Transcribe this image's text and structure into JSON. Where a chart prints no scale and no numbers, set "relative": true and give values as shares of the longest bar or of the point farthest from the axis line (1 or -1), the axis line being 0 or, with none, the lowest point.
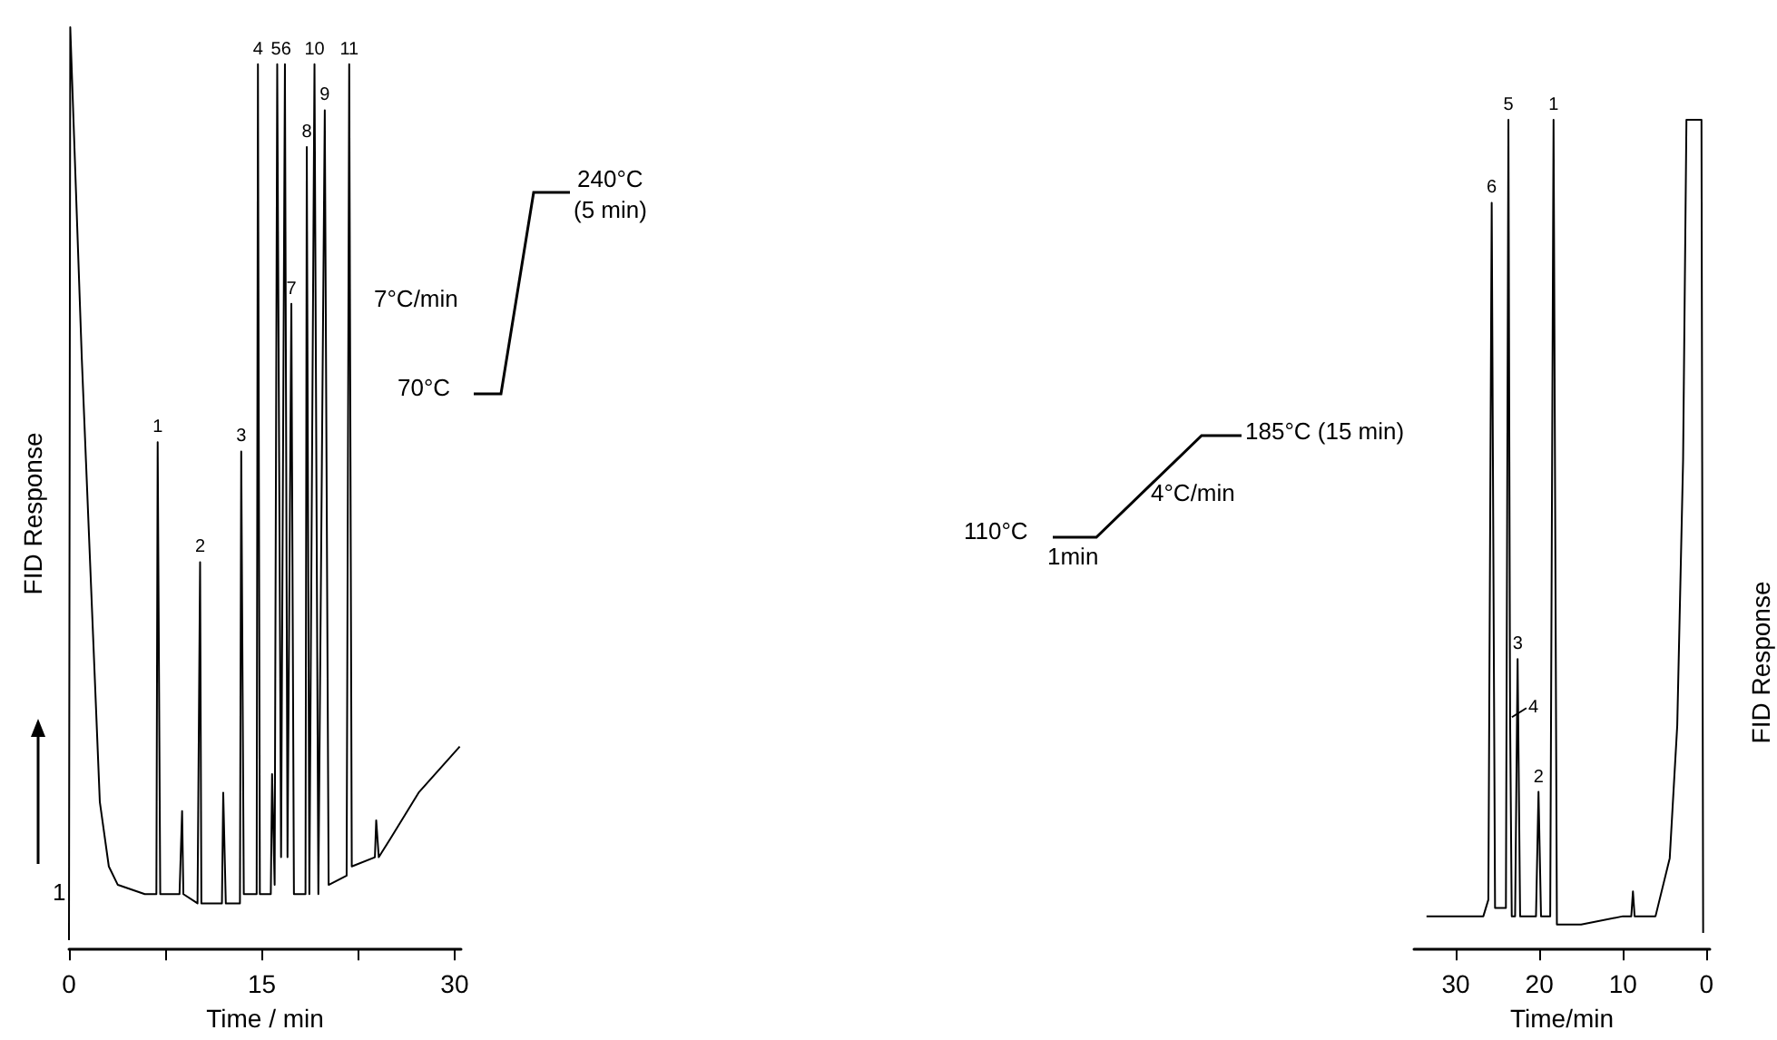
{
  "chart_data": [
    {
      "type": "line",
      "relative": true,
      "xlabel": "Time / min",
      "ylabel": "FID Response",
      "xlim": [
        0,
        30.5
      ],
      "xticks": [
        0,
        {
          "value": 7.5,
          "label": null
        },
        15,
        {
          "value": 22.5,
          "label": null
        },
        30
      ],
      "x": [
        0,
        0.1,
        1.0,
        2.4,
        3.1,
        3.8,
        5.9,
        6.8,
        6.9,
        7.1,
        8.6,
        8.8,
        8.9,
        10.0,
        10.2,
        10.3,
        11.9,
        12.0,
        12.2,
        13.3,
        13.4,
        13.6,
        14.6,
        14.7,
        14.85,
        15.7,
        15.8,
        16.0,
        16.2,
        16.5,
        16.8,
        17.0,
        17.3,
        17.5,
        18.4,
        18.5,
        18.7,
        19.1,
        19.4,
        19.9,
        20.2,
        21.6,
        21.8,
        22.0,
        23.8,
        23.9,
        24.1,
        25.0,
        27.2,
        30.4
      ],
      "series": [
        {
          "color": "#000000",
          "values": [
            0.01,
            1.0,
            0.64,
            0.16,
            0.09,
            0.07,
            0.06,
            0.06,
            0.55,
            0.06,
            0.06,
            0.15,
            0.06,
            0.05,
            0.42,
            0.05,
            0.05,
            0.17,
            0.05,
            0.05,
            0.54,
            0.06,
            0.06,
            0.96,
            0.06,
            0.06,
            0.19,
            0.07,
            0.96,
            0.1,
            0.96,
            0.1,
            0.7,
            0.06,
            0.06,
            0.87,
            0.06,
            0.96,
            0.06,
            0.91,
            0.07,
            0.08,
            0.96,
            0.09,
            0.1,
            0.14,
            0.1,
            0.12,
            0.17,
            0.22
          ]
        }
      ],
      "annotations": [
        "240°C",
        "(5 min)",
        "7°C/min",
        "70°C",
        "1",
        {
          "text": "1",
          "x": 6.9,
          "y": 0.55
        },
        {
          "text": "2",
          "x": 10.2,
          "y": 0.42
        },
        {
          "text": "3",
          "x": 13.4,
          "y": 0.54
        },
        {
          "text": "4",
          "x": 14.7,
          "y": 0.96
        },
        {
          "text": "56",
          "x": 16.5,
          "y": 0.96
        },
        {
          "text": "7",
          "x": 17.3,
          "y": 0.7
        },
        {
          "text": "8",
          "x": 18.5,
          "y": 0.87
        },
        {
          "text": "10",
          "x": 19.1,
          "y": 0.96
        },
        {
          "text": "9",
          "x": 19.9,
          "y": 0.91
        },
        {
          "text": "11",
          "x": 21.8,
          "y": 0.96
        }
      ]
    },
    {
      "type": "line",
      "relative": true,
      "xlabel": "Time/min",
      "ylabel": "FID Response",
      "xlim": [
        35,
        -0.4
      ],
      "xticks": [
        30,
        20,
        10,
        0
      ],
      "x": [
        0.4,
        0.6,
        2.4,
        2.8,
        3.5,
        4.4,
        6.1,
        8.6,
        8.8,
        9.0,
        10,
        15,
        17.9,
        18.3,
        18.7,
        19.8,
        20.1,
        20.4,
        22.3,
        22.6,
        22.9,
        23.3,
        23.5,
        23.7,
        24.0,
        25.3,
        25.7,
        26.1,
        26.7,
        33.5
      ],
      "series": [
        {
          "color": "#000000",
          "values": [
            0.02,
            1.0,
            1.0,
            0.59,
            0.27,
            0.11,
            0.04,
            0.04,
            0.07,
            0.04,
            0.04,
            0.03,
            0.03,
            1.0,
            0.04,
            0.04,
            0.19,
            0.04,
            0.04,
            0.35,
            0.04,
            0.04,
            0.28,
            1.0,
            0.05,
            0.05,
            0.9,
            0.06,
            0.04,
            0.04
          ]
        }
      ],
      "annotations": [
        "185°C (15 min)",
        "4°C/min",
        "110°C",
        "1min",
        {
          "text": "6",
          "x": 25.7,
          "y": 0.9
        },
        {
          "text": "5",
          "x": 23.7,
          "y": 1.0
        },
        {
          "text": "1",
          "x": 18.3,
          "y": 1.0
        },
        {
          "text": "3",
          "x": 22.6,
          "y": 0.35
        },
        {
          "text": "4",
          "x": 23.5,
          "y": 0.28
        },
        {
          "text": "2",
          "x": 20.1,
          "y": 0.19
        }
      ]
    }
  ]
}
